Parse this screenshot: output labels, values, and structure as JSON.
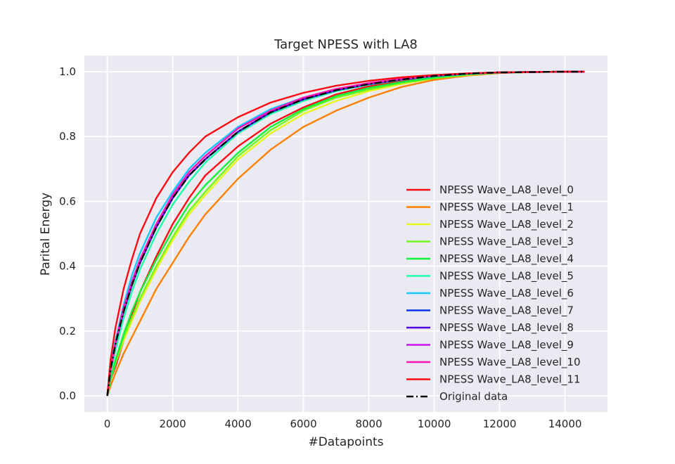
{
  "chart_data": {
    "type": "line",
    "title": "Target NPESS with LA8",
    "xlabel": "#Datapoints",
    "ylabel": "Parital Energy",
    "xlim": [
      -700,
      15300
    ],
    "ylim": [
      -0.05,
      1.05
    ],
    "xticks": [
      0,
      2000,
      4000,
      6000,
      8000,
      10000,
      12000,
      14000
    ],
    "yticks": [
      0.0,
      0.2,
      0.4,
      0.6,
      0.8,
      1.0
    ],
    "xtick_labels": [
      "0",
      "2000",
      "4000",
      "6000",
      "8000",
      "10000",
      "12000",
      "14000"
    ],
    "ytick_labels": [
      "0.0",
      "0.2",
      "0.4",
      "0.6",
      "0.8",
      "1.0"
    ],
    "grid": true,
    "legend_position": "lower right",
    "x": [
      0,
      100,
      250,
      500,
      750,
      1000,
      1500,
      2000,
      2500,
      3000,
      4000,
      5000,
      6000,
      7000,
      8000,
      9000,
      10000,
      11000,
      12000,
      13000,
      14000,
      14600
    ],
    "series": [
      {
        "name": "NPESS Wave_LA8_level_0",
        "color": "#ff0a14",
        "style": "solid",
        "values": [
          0,
          0.05,
          0.09,
          0.17,
          0.25,
          0.32,
          0.43,
          0.53,
          0.61,
          0.68,
          0.77,
          0.84,
          0.89,
          0.93,
          0.955,
          0.972,
          0.985,
          0.992,
          0.997,
          0.999,
          1.0,
          1.0
        ]
      },
      {
        "name": "NPESS Wave_LA8_level_1",
        "color": "#ff8000",
        "style": "solid",
        "values": [
          0,
          0.03,
          0.07,
          0.13,
          0.18,
          0.23,
          0.33,
          0.41,
          0.49,
          0.56,
          0.67,
          0.76,
          0.83,
          0.88,
          0.92,
          0.953,
          0.975,
          0.988,
          0.996,
          0.999,
          1.0,
          1.0
        ]
      },
      {
        "name": "NPESS Wave_LA8_level_2",
        "color": "#e6f51a",
        "style": "solid",
        "values": [
          0,
          0.05,
          0.1,
          0.17,
          0.23,
          0.29,
          0.39,
          0.48,
          0.56,
          0.62,
          0.73,
          0.81,
          0.87,
          0.91,
          0.94,
          0.962,
          0.98,
          0.99,
          0.997,
          0.999,
          1.0,
          1.0
        ]
      },
      {
        "name": "NPESS Wave_LA8_level_3",
        "color": "#73f51e",
        "style": "solid",
        "values": [
          0,
          0.05,
          0.1,
          0.18,
          0.24,
          0.3,
          0.4,
          0.49,
          0.57,
          0.63,
          0.74,
          0.82,
          0.88,
          0.92,
          0.945,
          0.965,
          0.98,
          0.991,
          0.997,
          0.999,
          1.0,
          1.0
        ]
      },
      {
        "name": "NPESS Wave_LA8_level_4",
        "color": "#14f03c",
        "style": "solid",
        "values": [
          0,
          0.05,
          0.11,
          0.19,
          0.26,
          0.32,
          0.42,
          0.51,
          0.59,
          0.65,
          0.75,
          0.83,
          0.885,
          0.925,
          0.95,
          0.968,
          0.982,
          0.992,
          0.997,
          0.999,
          1.0,
          1.0
        ]
      },
      {
        "name": "NPESS Wave_LA8_level_5",
        "color": "#1effaa",
        "style": "solid",
        "values": [
          0,
          0.07,
          0.14,
          0.24,
          0.32,
          0.39,
          0.5,
          0.59,
          0.66,
          0.72,
          0.81,
          0.87,
          0.91,
          0.94,
          0.96,
          0.975,
          0.986,
          0.993,
          0.997,
          0.999,
          1.0,
          1.0
        ]
      },
      {
        "name": "NPESS Wave_LA8_level_6",
        "color": "#14c8ff",
        "style": "solid",
        "values": [
          0,
          0.09,
          0.17,
          0.28,
          0.37,
          0.44,
          0.55,
          0.63,
          0.7,
          0.75,
          0.83,
          0.885,
          0.92,
          0.945,
          0.962,
          0.976,
          0.987,
          0.994,
          0.998,
          0.999,
          1.0,
          1.0
        ]
      },
      {
        "name": "NPESS Wave_LA8_level_7",
        "color": "#0a32f0",
        "style": "solid",
        "values": [
          0,
          0.08,
          0.16,
          0.26,
          0.34,
          0.41,
          0.52,
          0.61,
          0.68,
          0.73,
          0.815,
          0.875,
          0.915,
          0.943,
          0.962,
          0.976,
          0.987,
          0.994,
          0.998,
          0.999,
          1.0,
          1.0
        ]
      },
      {
        "name": "NPESS Wave_LA8_level_8",
        "color": "#5000e6",
        "style": "solid",
        "values": [
          0,
          0.08,
          0.16,
          0.26,
          0.34,
          0.41,
          0.52,
          0.61,
          0.68,
          0.73,
          0.815,
          0.875,
          0.915,
          0.943,
          0.962,
          0.976,
          0.987,
          0.994,
          0.998,
          0.999,
          1.0,
          1.0
        ]
      },
      {
        "name": "NPESS Wave_LA8_level_9",
        "color": "#c814f0",
        "style": "solid",
        "values": [
          0,
          0.08,
          0.16,
          0.27,
          0.35,
          0.42,
          0.53,
          0.62,
          0.69,
          0.74,
          0.825,
          0.88,
          0.92,
          0.947,
          0.965,
          0.978,
          0.988,
          0.995,
          0.998,
          0.999,
          1.0,
          1.0
        ]
      },
      {
        "name": "NPESS Wave_LA8_level_10",
        "color": "#ff14b4",
        "style": "solid",
        "values": [
          0,
          0.08,
          0.16,
          0.27,
          0.35,
          0.42,
          0.53,
          0.62,
          0.69,
          0.74,
          0.825,
          0.88,
          0.92,
          0.947,
          0.965,
          0.978,
          0.988,
          0.995,
          0.998,
          0.999,
          1.0,
          1.0
        ]
      },
      {
        "name": "NPESS Wave_LA8_level_11",
        "color": "#ff0a14",
        "style": "solid",
        "values": [
          0,
          0.11,
          0.21,
          0.33,
          0.42,
          0.5,
          0.61,
          0.69,
          0.75,
          0.8,
          0.86,
          0.905,
          0.935,
          0.957,
          0.972,
          0.983,
          0.99,
          0.995,
          0.998,
          0.999,
          1.0,
          1.0
        ]
      },
      {
        "name": "Original data",
        "color": "#000000",
        "style": "dashdot",
        "values": [
          0,
          0.08,
          0.16,
          0.26,
          0.34,
          0.41,
          0.52,
          0.61,
          0.68,
          0.73,
          0.815,
          0.875,
          0.915,
          0.943,
          0.962,
          0.976,
          0.987,
          0.994,
          0.998,
          0.999,
          1.0,
          1.0
        ]
      }
    ],
    "colors": {
      "plot_background": "#eaeaf2",
      "grid": "#ffffff",
      "text": "#262626"
    }
  }
}
